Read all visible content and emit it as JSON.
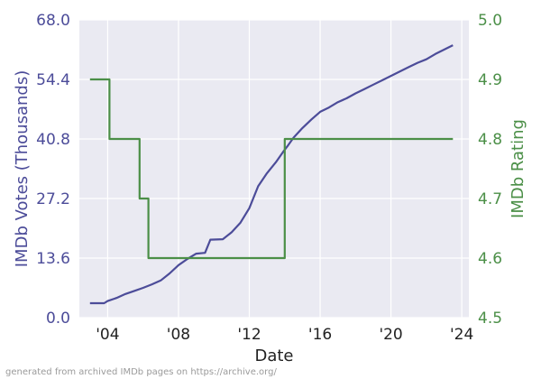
{
  "footer_note": "generated from archived IMDb pages on https://archive.org/",
  "colors": {
    "plot_bg": "#eaeaf2",
    "grid": "#ffffff",
    "votes": "#4c4c99",
    "rating": "#4b8f47",
    "x_text": "#222222"
  },
  "chart_data": {
    "type": "line",
    "title": "",
    "xlabel": "Date",
    "ylabel_left": "IMDb Votes (Thousands)",
    "ylabel_right": "IMDb Rating",
    "xlim": [
      2002.4,
      2024.4
    ],
    "ylim_left": [
      0,
      68
    ],
    "ylim_right": [
      4.5,
      5.0
    ],
    "x_ticks": [
      {
        "value": 2004,
        "label": "'04"
      },
      {
        "value": 2008,
        "label": "'08"
      },
      {
        "value": 2012,
        "label": "'12"
      },
      {
        "value": 2016,
        "label": "'16"
      },
      {
        "value": 2020,
        "label": "'20"
      },
      {
        "value": 2024,
        "label": "'24"
      }
    ],
    "y_ticks_left": [
      {
        "value": 0,
        "label": "0.0"
      },
      {
        "value": 13.6,
        "label": "13.6"
      },
      {
        "value": 27.2,
        "label": "27.2"
      },
      {
        "value": 40.8,
        "label": "40.8"
      },
      {
        "value": 54.4,
        "label": "54.4"
      },
      {
        "value": 68,
        "label": "68.0"
      }
    ],
    "y_ticks_right": [
      {
        "value": 4.5,
        "label": "4.5"
      },
      {
        "value": 4.6,
        "label": "4.6"
      },
      {
        "value": 4.7,
        "label": "4.7"
      },
      {
        "value": 4.8,
        "label": "4.8"
      },
      {
        "value": 4.9,
        "label": "4.9"
      },
      {
        "value": 5.0,
        "label": "5.0"
      }
    ],
    "grid": true,
    "series": [
      {
        "axis": "left",
        "x": [
          2003.0,
          2003.8,
          2004.0,
          2004.5,
          2005.0,
          2005.5,
          2006.0,
          2006.5,
          2007.0,
          2007.5,
          2008.0,
          2008.5,
          2009.0,
          2009.5,
          2009.8,
          2010.5,
          2011.0,
          2011.5,
          2012.0,
          2012.5,
          2013.0,
          2013.5,
          2013.9,
          2014.2,
          2014.5,
          2015.0,
          2015.5,
          2016.0,
          2016.5,
          2017.0,
          2017.5,
          2018.0,
          2018.5,
          2019.0,
          2019.5,
          2020.0,
          2020.5,
          2021.0,
          2021.5,
          2022.0,
          2022.5,
          2023.0,
          2023.5
        ],
        "y": [
          3.3,
          3.3,
          3.8,
          4.5,
          5.4,
          6.1,
          6.8,
          7.6,
          8.5,
          10.1,
          12.0,
          13.4,
          14.6,
          14.8,
          17.8,
          17.9,
          19.5,
          21.7,
          25.0,
          30.0,
          33.0,
          35.5,
          37.8,
          39.4,
          41.1,
          43.3,
          45.2,
          47.0,
          48.0,
          49.2,
          50.1,
          51.2,
          52.2,
          53.2,
          54.2,
          55.2,
          56.2,
          57.2,
          58.2,
          59.0,
          60.2,
          61.2,
          62.2
        ]
      },
      {
        "axis": "right",
        "x": [
          2003.0,
          2004.1,
          2004.1,
          2005.8,
          2005.8,
          2006.3,
          2006.3,
          2014.0,
          2014.0,
          2023.5
        ],
        "y": [
          4.9,
          4.9,
          4.8,
          4.8,
          4.7,
          4.7,
          4.6,
          4.6,
          4.8,
          4.8
        ]
      }
    ]
  }
}
